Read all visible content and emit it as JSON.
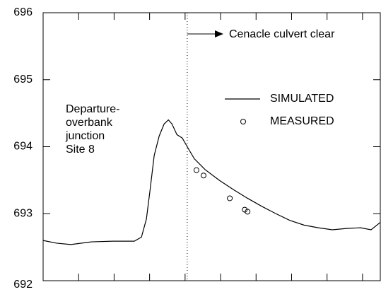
{
  "chart_data": {
    "type": "line",
    "ylim": [
      692,
      696
    ],
    "yticks": [
      692,
      693,
      694,
      695,
      696
    ],
    "xlim": [
      0,
      9.5
    ],
    "xticks": [
      0,
      1,
      2,
      3,
      4,
      5,
      6,
      7,
      8,
      9
    ],
    "series": [
      {
        "name": "SIMULATED",
        "style": "line",
        "color": "#000",
        "x": [
          0,
          0.38,
          0.78,
          1.37,
          1.97,
          2.57,
          2.77,
          2.91,
          3.01,
          3.13,
          3.27,
          3.41,
          3.53,
          3.63,
          3.77,
          3.92,
          4.06,
          4.26,
          4.56,
          4.96,
          5.36,
          5.76,
          6.16,
          6.56,
          6.95,
          7.35,
          7.75,
          8.15,
          8.55,
          8.94,
          9.24,
          9.5
        ],
        "values": [
          692.6,
          692.56,
          692.54,
          692.58,
          692.59,
          692.59,
          692.65,
          692.92,
          693.34,
          693.87,
          694.16,
          694.34,
          694.4,
          694.34,
          694.18,
          694.13,
          694.0,
          693.82,
          693.66,
          693.5,
          693.36,
          693.23,
          693.11,
          693.0,
          692.9,
          692.83,
          692.79,
          692.76,
          692.78,
          692.79,
          692.76,
          692.87
        ]
      },
      {
        "name": "MEASURED",
        "style": "markers",
        "color": "#000",
        "x": [
          4.32,
          4.52,
          5.26,
          5.68,
          5.76
        ],
        "values": [
          693.65,
          693.57,
          693.23,
          693.06,
          693.03
        ]
      }
    ],
    "annotations": [
      {
        "text": "Cenacle culvert clear",
        "x": 4.06
      },
      {
        "lines": [
          "Departure-",
          "overbank",
          "junction",
          "Site  8"
        ]
      }
    ]
  }
}
